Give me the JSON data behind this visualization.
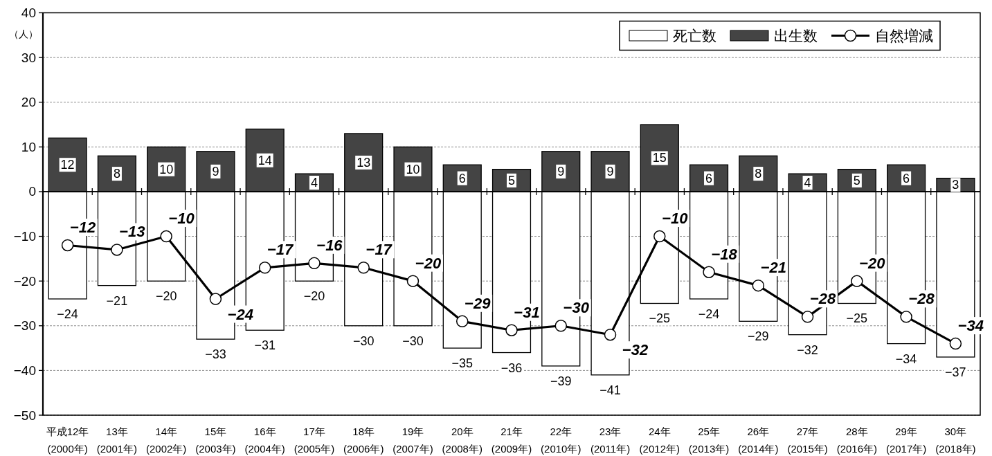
{
  "chart_data": {
    "type": "bar",
    "ylabel": "（人）",
    "categories": [
      "平成12年\n(2000年)",
      "13年\n(2001年)",
      "14年\n(2002年)",
      "15年\n(2003年)",
      "16年\n(2004年)",
      "17年\n(2005年)",
      "18年\n(2006年)",
      "19年\n(2007年)",
      "20年\n(2008年)",
      "21年\n(2009年)",
      "22年\n(2010年)",
      "23年\n(2011年)",
      "24年\n(2012年)",
      "25年\n(2013年)",
      "26年\n(2014年)",
      "27年\n(2015年)",
      "28年\n(2016年)",
      "29年\n(2017年)",
      "30年\n(2018年)"
    ],
    "series": [
      {
        "name": "死亡数",
        "color": "#ffffff",
        "values": [
          -24,
          -21,
          -20,
          -33,
          -31,
          -20,
          -30,
          -30,
          -35,
          -36,
          -39,
          -41,
          -25,
          -24,
          -29,
          -32,
          -25,
          -34,
          -37
        ]
      },
      {
        "name": "出生数",
        "color": "#444444",
        "values": [
          12,
          8,
          10,
          9,
          14,
          4,
          13,
          10,
          6,
          5,
          9,
          9,
          15,
          6,
          8,
          4,
          5,
          6,
          3
        ]
      },
      {
        "name": "自然増減",
        "type": "line",
        "color": "#000000",
        "marker": "circle",
        "values": [
          -12,
          -13,
          -10,
          -24,
          -17,
          -16,
          -17,
          -20,
          -29,
          -31,
          -30,
          -32,
          -10,
          -18,
          -21,
          -28,
          -20,
          -28,
          -34
        ]
      }
    ],
    "stacked": true,
    "ylim": [
      -50,
      40
    ],
    "yticks": [
      -50,
      -40,
      -30,
      -20,
      -10,
      0,
      10,
      20,
      30,
      40
    ],
    "grid": "y",
    "legend": "top right",
    "data_labels": true
  }
}
